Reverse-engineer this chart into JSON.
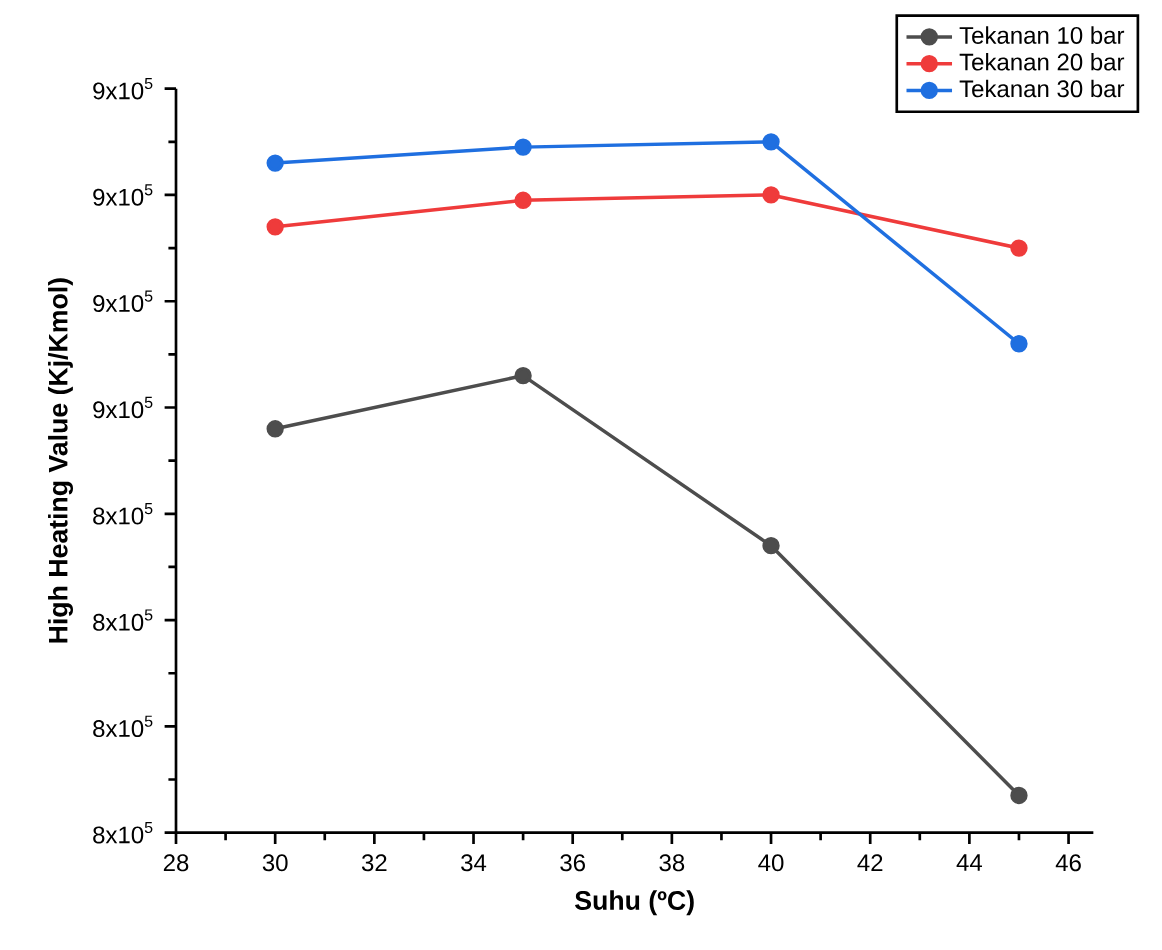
{
  "chart_data": {
    "type": "line",
    "xlabel": "Suhu (ºC)",
    "ylabel": "High Heating Value (Kj/Kmol)",
    "x": [
      30,
      35,
      40,
      45
    ],
    "series": [
      {
        "name": "Tekanan 10 bar",
        "color": "#4d4d4d",
        "values": [
          856000,
          866000,
          834000,
          787000
        ]
      },
      {
        "name": "Tekanan 20 bar",
        "color": "#ef3b3b",
        "values": [
          894000,
          899000,
          900000,
          890000
        ]
      },
      {
        "name": "Tekanan 30 bar",
        "color": "#1f6fe0",
        "values": [
          906000,
          909000,
          910000,
          872000
        ]
      }
    ],
    "xlim": [
      28,
      46.5
    ],
    "xticks": [
      28,
      30,
      32,
      34,
      36,
      38,
      40,
      42,
      44,
      46
    ],
    "ylim": [
      780000,
      920000
    ],
    "yticks": [
      {
        "value": 780000,
        "label": "8x10$^{5}$"
      },
      {
        "value": 800000,
        "label": "8x10$^{5}$"
      },
      {
        "value": 820000,
        "label": "8x10$^{5}$"
      },
      {
        "value": 840000,
        "label": "8x10$^{5}$"
      },
      {
        "value": 860000,
        "label": "9x10$^{5}$"
      },
      {
        "value": 880000,
        "label": "9x10$^{5}$"
      },
      {
        "value": 900000,
        "label": "9x10$^{5}$"
      },
      {
        "value": 920000,
        "label": "9x10$^{5}$"
      }
    ],
    "grid": false,
    "legend": "top right",
    "marker": "circle",
    "line_style": "solid"
  }
}
